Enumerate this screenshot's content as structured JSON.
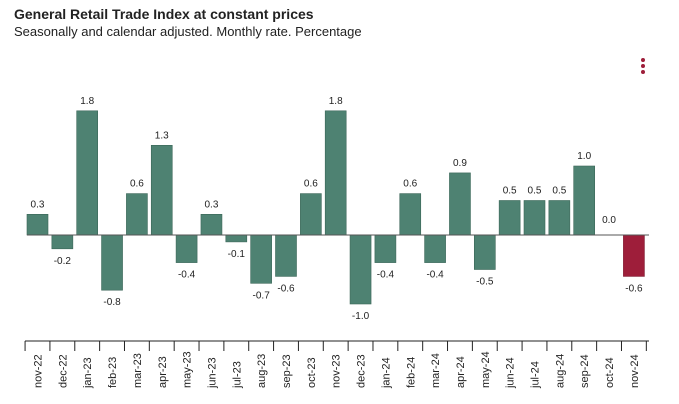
{
  "header": {
    "title": "General Retail Trade Index at constant prices",
    "subtitle": "Seasonally and calendar adjusted. Monthly rate. Percentage",
    "menu_icon": "kebab-menu-icon"
  },
  "colors": {
    "positive_bar": "#4e8272",
    "highlight_bar": "#9e1e3a",
    "menu_dots": "#9e1e3a",
    "axis": "#222222",
    "text": "#222222"
  },
  "chart_data": {
    "type": "bar",
    "title": "General Retail Trade Index at constant prices",
    "subtitle": "Seasonally and calendar adjusted. Monthly rate. Percentage",
    "xlabel": "",
    "ylabel": "",
    "ylim": [
      -1.0,
      1.8
    ],
    "grid": false,
    "legend": "none",
    "categories": [
      "nov-22",
      "dec-22",
      "jan-23",
      "feb-23",
      "mar-23",
      "apr-23",
      "may-23",
      "jun-23",
      "jul-23",
      "aug-23",
      "sep-23",
      "oct-23",
      "nov-23",
      "dec-23",
      "jan-24",
      "feb-24",
      "mar-24",
      "apr-24",
      "may-24",
      "jun-24",
      "jul-24",
      "aug-24",
      "sep-24",
      "oct-24",
      "nov-24"
    ],
    "values": [
      0.3,
      -0.2,
      1.8,
      -0.8,
      0.6,
      1.3,
      -0.4,
      0.3,
      -0.1,
      -0.7,
      -0.6,
      0.6,
      1.8,
      -1.0,
      -0.4,
      0.6,
      -0.4,
      0.9,
      -0.5,
      0.5,
      0.5,
      0.5,
      1.0,
      0.0,
      -0.6
    ],
    "labels": [
      "0.3",
      "-0.2",
      "1.8",
      "-0.8",
      "0.6",
      "1.3",
      "-0.4",
      "0.3",
      "-0.1",
      "-0.7",
      "-0.6",
      "0.6",
      "1.8",
      "-1.0",
      "-0.4",
      "0.6",
      "-0.4",
      "0.9",
      "-0.5",
      "0.5",
      "0.5",
      "0.5",
      "1.0",
      "0.0",
      "-0.6"
    ],
    "highlight_index": 24
  }
}
